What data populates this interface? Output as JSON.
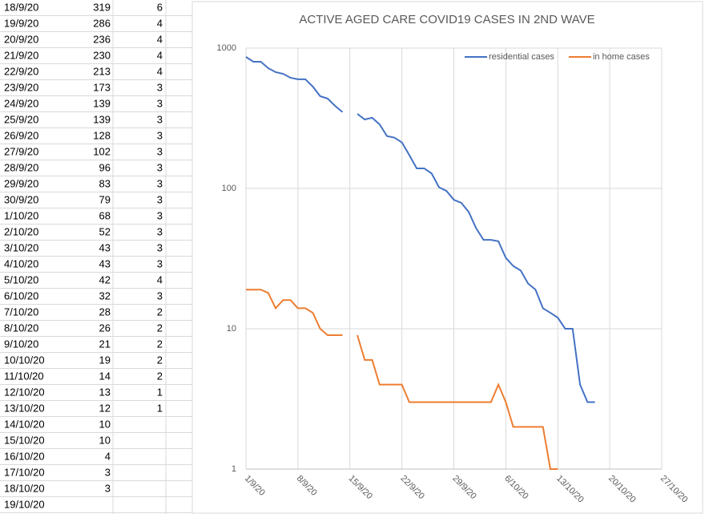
{
  "table": {
    "rows": [
      [
        "18/9/20",
        319,
        6
      ],
      [
        "19/9/20",
        286,
        4
      ],
      [
        "20/9/20",
        236,
        4
      ],
      [
        "21/9/20",
        230,
        4
      ],
      [
        "22/9/20",
        213,
        4
      ],
      [
        "23/9/20",
        173,
        3
      ],
      [
        "24/9/20",
        139,
        3
      ],
      [
        "25/9/20",
        139,
        3
      ],
      [
        "26/9/20",
        128,
        3
      ],
      [
        "27/9/20",
        102,
        3
      ],
      [
        "28/9/20",
        96,
        3
      ],
      [
        "29/9/20",
        83,
        3
      ],
      [
        "30/9/20",
        79,
        3
      ],
      [
        "1/10/20",
        68,
        3
      ],
      [
        "2/10/20",
        52,
        3
      ],
      [
        "3/10/20",
        43,
        3
      ],
      [
        "4/10/20",
        43,
        3
      ],
      [
        "5/10/20",
        42,
        4
      ],
      [
        "6/10/20",
        32,
        3
      ],
      [
        "7/10/20",
        28,
        2
      ],
      [
        "8/10/20",
        26,
        2
      ],
      [
        "9/10/20",
        21,
        2
      ],
      [
        "10/10/20",
        19,
        2
      ],
      [
        "11/10/20",
        14,
        2
      ],
      [
        "12/10/20",
        13,
        1
      ],
      [
        "13/10/20",
        12,
        1
      ],
      [
        "14/10/20",
        10,
        null
      ],
      [
        "15/10/20",
        10,
        null
      ],
      [
        "16/10/20",
        4,
        null
      ],
      [
        "17/10/20",
        3,
        null
      ],
      [
        "18/10/20",
        3,
        null
      ],
      [
        "19/10/20",
        null,
        null
      ]
    ]
  },
  "chart_data": {
    "type": "line",
    "title": "ACTIVE AGED CARE COVID19 CASES IN 2ND WAVE",
    "x": [
      "1/9/20",
      "2/9/20",
      "3/9/20",
      "4/9/20",
      "5/9/20",
      "6/9/20",
      "7/9/20",
      "8/9/20",
      "9/9/20",
      "10/9/20",
      "11/9/20",
      "12/9/20",
      "13/9/20",
      "14/9/20",
      "15/9/20",
      "16/9/20",
      "17/9/20",
      "18/9/20",
      "19/9/20",
      "20/9/20",
      "21/9/20",
      "22/9/20",
      "23/9/20",
      "24/9/20",
      "25/9/20",
      "26/9/20",
      "27/9/20",
      "28/9/20",
      "29/9/20",
      "30/9/20",
      "1/10/20",
      "2/10/20",
      "3/10/20",
      "4/10/20",
      "5/10/20",
      "6/10/20",
      "7/10/20",
      "8/10/20",
      "9/10/20",
      "10/10/20",
      "11/10/20",
      "12/10/20",
      "13/10/20",
      "14/10/20",
      "15/10/20",
      "16/10/20",
      "17/10/20",
      "18/10/20"
    ],
    "series": [
      {
        "name": "residential cases",
        "color": "#4472c4",
        "values": [
          865,
          800,
          800,
          720,
          674,
          656,
          615,
          600,
          600,
          532,
          454,
          437,
          388,
          350,
          null,
          340,
          310,
          319,
          286,
          236,
          230,
          213,
          173,
          139,
          139,
          128,
          102,
          96,
          83,
          79,
          68,
          52,
          43,
          43,
          42,
          32,
          28,
          26,
          21,
          19,
          14,
          13,
          12,
          10,
          10,
          4,
          3,
          3
        ]
      },
      {
        "name": "in home cases",
        "color": "#ed7d31",
        "values": [
          19,
          19,
          19,
          18,
          14,
          16,
          16,
          14,
          14,
          13,
          10,
          9,
          9,
          9,
          null,
          9,
          6,
          6,
          4,
          4,
          4,
          4,
          3,
          3,
          3,
          3,
          3,
          3,
          3,
          3,
          3,
          3,
          3,
          3,
          4,
          3,
          2,
          2,
          2,
          2,
          2,
          1,
          1,
          null,
          null,
          null,
          null,
          null
        ]
      }
    ],
    "xlim": [
      "1/9/20",
      "27/10/20"
    ],
    "xticks": [
      "1/9/20",
      "8/9/20",
      "15/9/20",
      "22/9/20",
      "29/9/20",
      "6/10/20",
      "13/10/20",
      "20/10/20",
      "27/10/20"
    ],
    "ylim": [
      1,
      1000
    ],
    "yticks": [
      1,
      10,
      100,
      1000
    ],
    "log_scale": true,
    "grid": true,
    "legend": "upper right"
  }
}
